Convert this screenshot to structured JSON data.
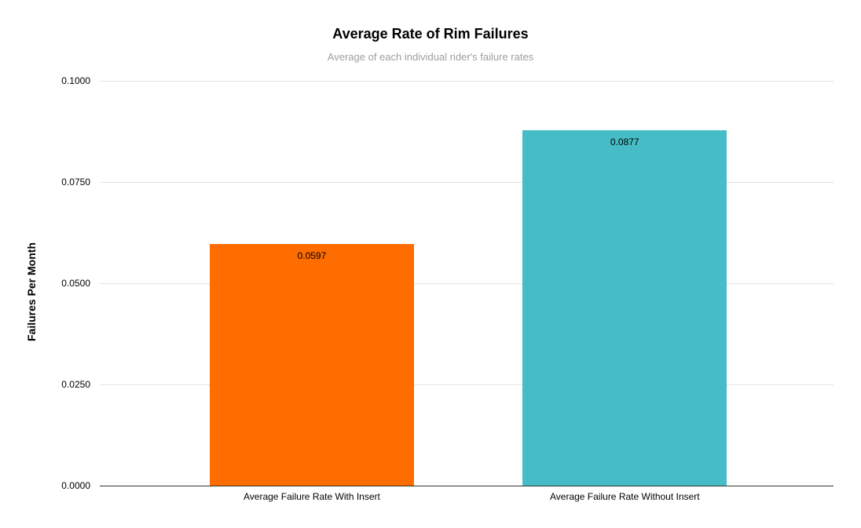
{
  "chart_data": {
    "type": "bar",
    "title": "Average Rate of Rim Failures",
    "subtitle": "Average of each individual rider's failure rates",
    "xlabel": "",
    "ylabel": "Failures Per Month",
    "categories": [
      "Average Failure Rate With Insert",
      "Average Failure Rate Without Insert"
    ],
    "values": [
      0.0597,
      0.0877
    ],
    "value_labels": [
      "0.0597",
      "0.0877"
    ],
    "bar_colors": [
      "#ff6d01",
      "#46bdc6"
    ],
    "ylim": [
      0,
      0.1
    ],
    "yticks": [
      {
        "value": 0.1,
        "label": "0.1000"
      },
      {
        "value": 0.075,
        "label": "0.0750"
      },
      {
        "value": 0.05,
        "label": "0.0500"
      },
      {
        "value": 0.025,
        "label": "0.0250"
      },
      {
        "value": 0,
        "label": "0.0000"
      }
    ],
    "grid": true,
    "legend": "none"
  },
  "colors": {
    "background": "#ffffff",
    "gridline": "#e2e2e2",
    "axis_line": "#333333",
    "title_text": "#000000",
    "subtitle_text": "#9e9e9e",
    "tick_text": "#000000",
    "value_label_text": "#000000"
  }
}
